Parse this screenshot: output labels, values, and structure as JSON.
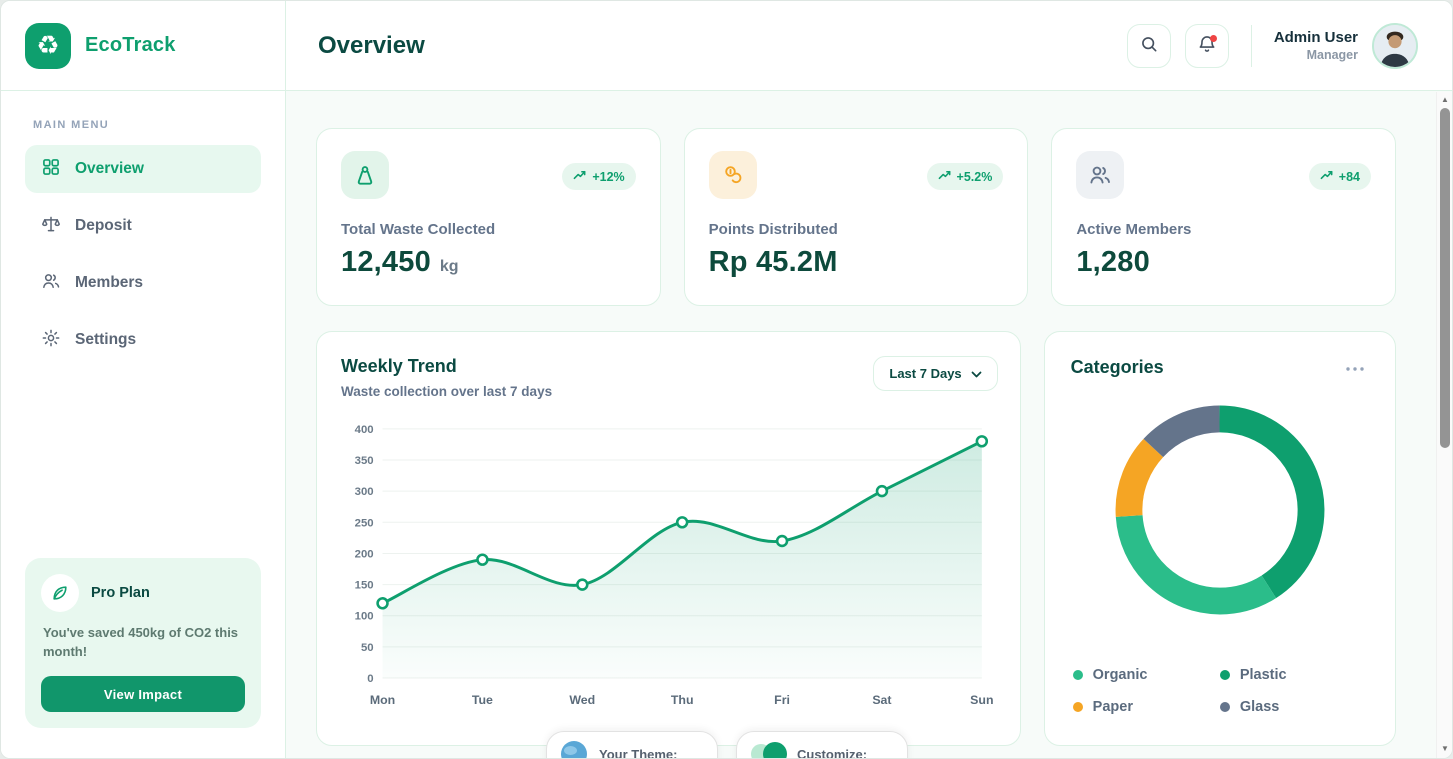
{
  "colors": {
    "brand": "#0E9F6E",
    "brand_light": "#2BBD8A",
    "orange": "#F5A524",
    "slate": "#64748B",
    "heading": "#0B4A42",
    "mint_border": "#DCF1E5",
    "mint_bg": "#E7F8EF",
    "page_bg": "#F7FBF9",
    "badge_bg": "#E7F6EE",
    "green_tint": "#E2F4EA",
    "orange_tint": "#FCF0DB",
    "gray_tint": "#EEF1F4",
    "red_dot": "#EF4444"
  },
  "brand": {
    "name": "EcoTrack",
    "logo_glyph": "♻"
  },
  "sidebar": {
    "section_label": "MAIN MENU",
    "items": [
      {
        "label": "Overview",
        "icon": "grid-icon",
        "active": true
      },
      {
        "label": "Deposit",
        "icon": "scale-icon",
        "active": false
      },
      {
        "label": "Members",
        "icon": "users-icon",
        "active": false
      },
      {
        "label": "Settings",
        "icon": "gear-icon",
        "active": false
      }
    ],
    "pro_card": {
      "title": "Pro Plan",
      "icon": "leaf-icon",
      "message": "You've saved 450kg of CO2 this month!",
      "button_label": "View Impact"
    }
  },
  "header": {
    "title": "Overview",
    "user": {
      "name": "Admin User",
      "role": "Manager"
    }
  },
  "stats": [
    {
      "label": "Total Waste Collected",
      "value": "12,450",
      "unit": "kg",
      "change": "+12%",
      "icon": "weight-icon",
      "accent": "green"
    },
    {
      "label": "Points Distributed",
      "value": "Rp 45.2M",
      "unit": "",
      "change": "+5.2%",
      "icon": "coins-icon",
      "accent": "orange"
    },
    {
      "label": "Active Members",
      "value": "1,280",
      "unit": "",
      "change": "+84",
      "icon": "members-icon",
      "accent": "gray"
    }
  ],
  "weekly_trend": {
    "title": "Weekly Trend",
    "subtitle": "Waste collection over last 7 days",
    "range_label": "Last 7 Days",
    "chart_data": {
      "type": "area",
      "categories": [
        "Mon",
        "Tue",
        "Wed",
        "Thu",
        "Fri",
        "Sat",
        "Sun"
      ],
      "values": [
        120,
        190,
        150,
        250,
        220,
        300,
        380
      ],
      "title": "Weekly Trend",
      "xlabel": "",
      "ylabel": "",
      "ylim": [
        0,
        400
      ],
      "ytick_step": 50,
      "grid": true,
      "line_color": "#0E9F6E",
      "point_style": "open-circle",
      "legend_position": "none"
    }
  },
  "categories": {
    "title": "Categories",
    "chart_data": {
      "type": "pie",
      "donut": true,
      "slices": [
        {
          "label": "Plastic",
          "value": 41,
          "color": "#0E9F6E"
        },
        {
          "label": "Organic",
          "value": 33,
          "color": "#2BBD8A"
        },
        {
          "label": "Paper",
          "value": 13,
          "color": "#F5A524"
        },
        {
          "label": "Glass",
          "value": 13,
          "color": "#64748B"
        }
      ],
      "legend_position": "bottom",
      "legend_order": [
        "Organic",
        "Plastic",
        "Paper",
        "Glass"
      ]
    }
  },
  "overlays": [
    {
      "label": "Your Theme:",
      "icon": "globe-icon"
    },
    {
      "label": "Customize:",
      "icon": "theme-swatch-icon"
    }
  ]
}
